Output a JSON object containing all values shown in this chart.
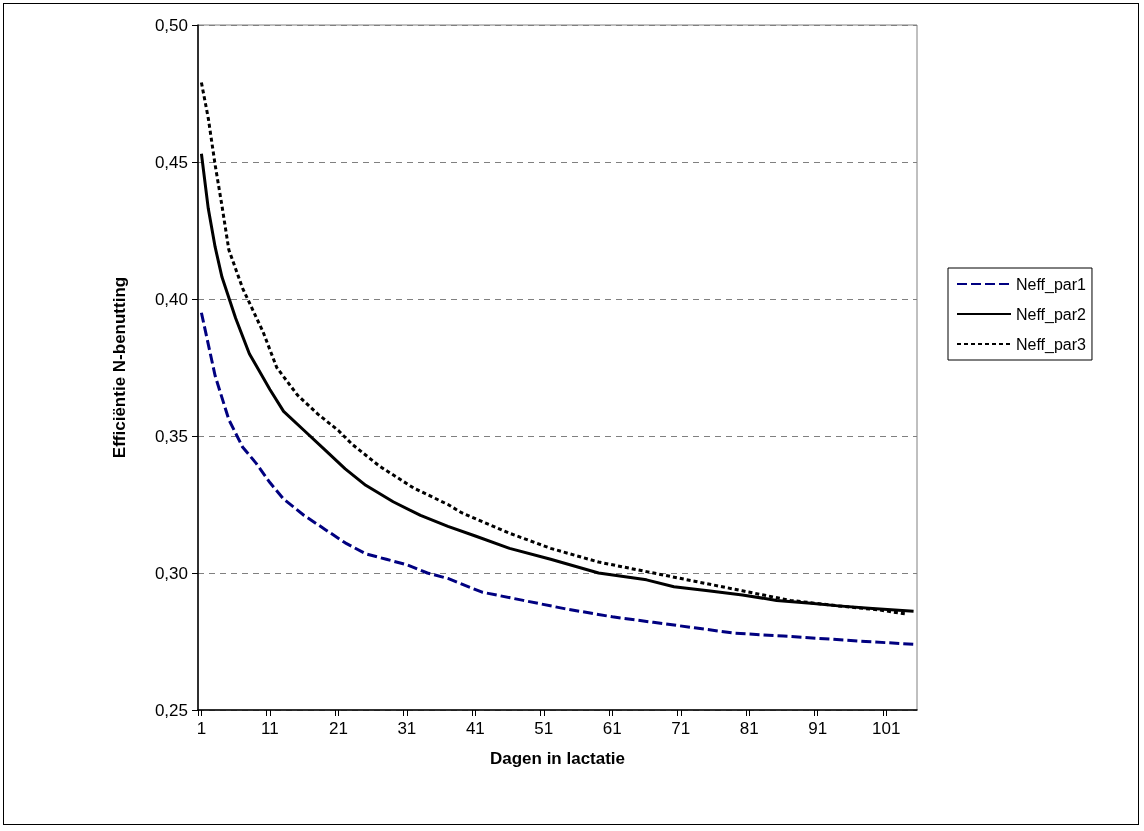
{
  "chart_data": {
    "type": "line",
    "xlabel": "Dagen in lactatie",
    "ylabel": "Efficiëntie N-benutting",
    "xlim": [
      0.5,
      105.5
    ],
    "xticks": [
      {
        "value": 0.5,
        "label": null
      },
      1,
      {
        "value": 10.5,
        "label": null
      },
      11,
      {
        "value": 20.5,
        "label": null
      },
      21,
      {
        "value": 30.5,
        "label": null
      },
      31,
      {
        "value": 40.5,
        "label": null
      },
      41,
      {
        "value": 50.5,
        "label": null
      },
      51,
      {
        "value": 60.5,
        "label": null
      },
      61,
      {
        "value": 70.5,
        "label": null
      },
      71,
      {
        "value": 80.5,
        "label": null
      },
      81,
      {
        "value": 90.5,
        "label": null
      },
      91,
      {
        "value": 100.5,
        "label": null
      },
      101
    ],
    "ylim": [
      0.25,
      0.5
    ],
    "yticks": [
      {
        "value": 0.25,
        "label": "0,25"
      },
      {
        "value": 0.3,
        "label": "0,30"
      },
      {
        "value": 0.35,
        "label": "0,35"
      },
      {
        "value": 0.4,
        "label": "0,40"
      },
      {
        "value": 0.45,
        "label": "0,45"
      },
      {
        "value": 0.5,
        "label": "0,50"
      }
    ],
    "grid": "y",
    "legend": "right",
    "marker": "none",
    "series": [
      {
        "name": "Neff_par1",
        "color": "#000080",
        "line_style": "dashed",
        "x": [
          1,
          3,
          5,
          7,
          9,
          11,
          13,
          16,
          19,
          22,
          25,
          28,
          31,
          34,
          37,
          42,
          48,
          54,
          61,
          67,
          73,
          79,
          86,
          92,
          98,
          105
        ],
        "values": [
          0.395,
          0.372,
          0.356,
          0.346,
          0.34,
          0.333,
          0.327,
          0.321,
          0.316,
          0.311,
          0.307,
          0.305,
          0.303,
          0.3,
          0.298,
          0.293,
          0.29,
          0.287,
          0.284,
          0.282,
          0.28,
          0.278,
          0.277,
          0.276,
          0.275,
          0.274
        ]
      },
      {
        "name": "Neff_par2",
        "color": "#000000",
        "line_style": "solid",
        "x": [
          1,
          2,
          3,
          4,
          6,
          8,
          11,
          13,
          16,
          19,
          22,
          25,
          29,
          33,
          37,
          41,
          46,
          52,
          59,
          66,
          70,
          75,
          80,
          85,
          90,
          94,
          99,
          105
        ],
        "values": [
          0.453,
          0.433,
          0.419,
          0.408,
          0.393,
          0.38,
          0.367,
          0.359,
          0.352,
          0.345,
          0.338,
          0.332,
          0.326,
          0.321,
          0.317,
          0.3135,
          0.309,
          0.305,
          0.3,
          0.2975,
          0.295,
          0.2935,
          0.292,
          0.29,
          0.289,
          0.288,
          0.287,
          0.286
        ]
      },
      {
        "name": "Neff_par3",
        "color": "#000000",
        "line_style": "dotted",
        "x": [
          1,
          2,
          3,
          4,
          5,
          7,
          10,
          12,
          15,
          18,
          21,
          23,
          27,
          32,
          37,
          39,
          46,
          52,
          59,
          66,
          73,
          80,
          87,
          94,
          100,
          104
        ],
        "values": [
          0.479,
          0.466,
          0.449,
          0.434,
          0.418,
          0.404,
          0.388,
          0.375,
          0.365,
          0.358,
          0.352,
          0.347,
          0.339,
          0.331,
          0.325,
          0.322,
          0.3145,
          0.309,
          0.304,
          0.3005,
          0.297,
          0.2935,
          0.29,
          0.288,
          0.2865,
          0.285
        ]
      }
    ]
  }
}
